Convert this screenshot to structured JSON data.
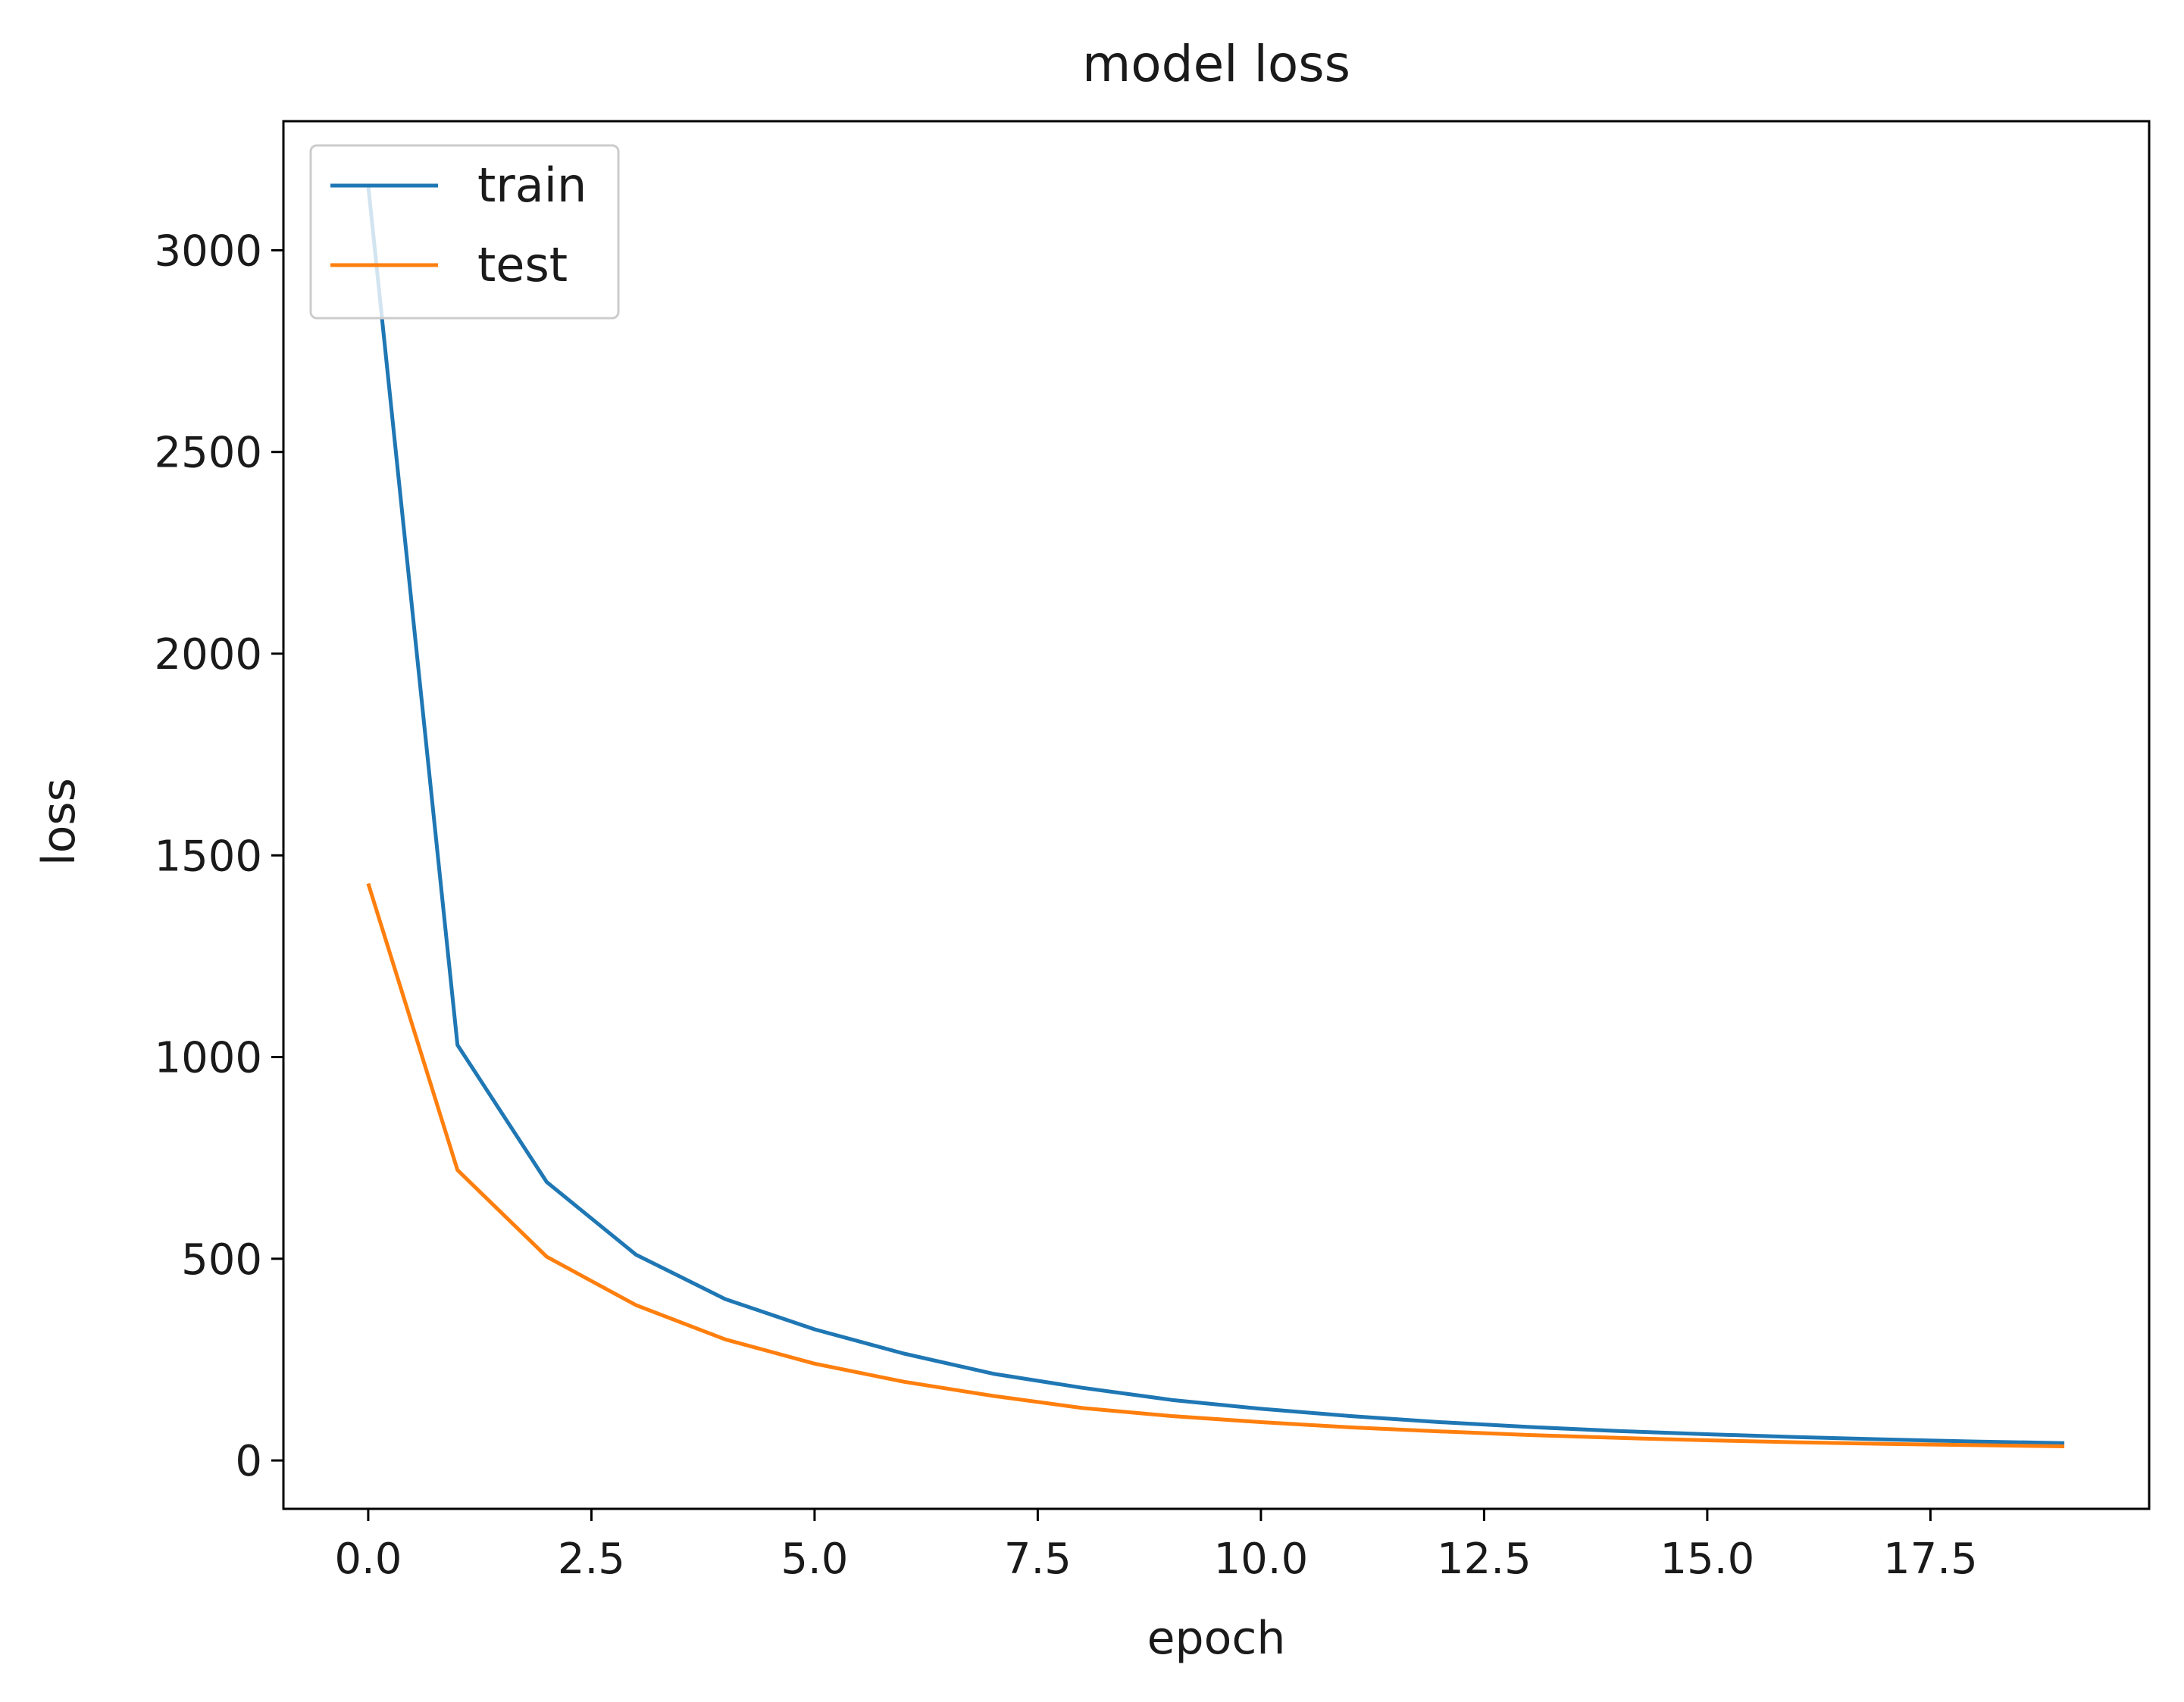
{
  "chart_data": {
    "type": "line",
    "title": "model loss",
    "xlabel": "epoch",
    "ylabel": "loss",
    "xlim": [
      -0.95,
      19.95
    ],
    "ylim": [
      -120,
      3320
    ],
    "xticks": [
      0.0,
      2.5,
      5.0,
      7.5,
      10.0,
      12.5,
      15.0,
      17.5
    ],
    "xtick_labels": [
      "0.0",
      "2.5",
      "5.0",
      "7.5",
      "10.0",
      "12.5",
      "15.0",
      "17.5"
    ],
    "yticks": [
      0,
      500,
      1000,
      1500,
      2000,
      2500,
      3000
    ],
    "ytick_labels": [
      "0",
      "500",
      "1000",
      "1500",
      "2000",
      "2500",
      "3000"
    ],
    "grid": false,
    "legend_position": "upper-left",
    "x": [
      0,
      1,
      2,
      3,
      4,
      5,
      6,
      7,
      8,
      9,
      10,
      11,
      12,
      13,
      14,
      15,
      16,
      17,
      18,
      19
    ],
    "series": [
      {
        "name": "train",
        "color": "#1f77b4",
        "values": [
          3160,
          1030,
          690,
          510,
          400,
          325,
          265,
          215,
          180,
          150,
          128,
          110,
          95,
          83,
          73,
          65,
          58,
          52,
          47,
          43
        ]
      },
      {
        "name": "test",
        "color": "#ff7f0e",
        "values": [
          1430,
          720,
          505,
          385,
          300,
          240,
          195,
          160,
          130,
          110,
          95,
          82,
          72,
          63,
          56,
          50,
          45,
          41,
          38,
          35
        ]
      }
    ]
  }
}
